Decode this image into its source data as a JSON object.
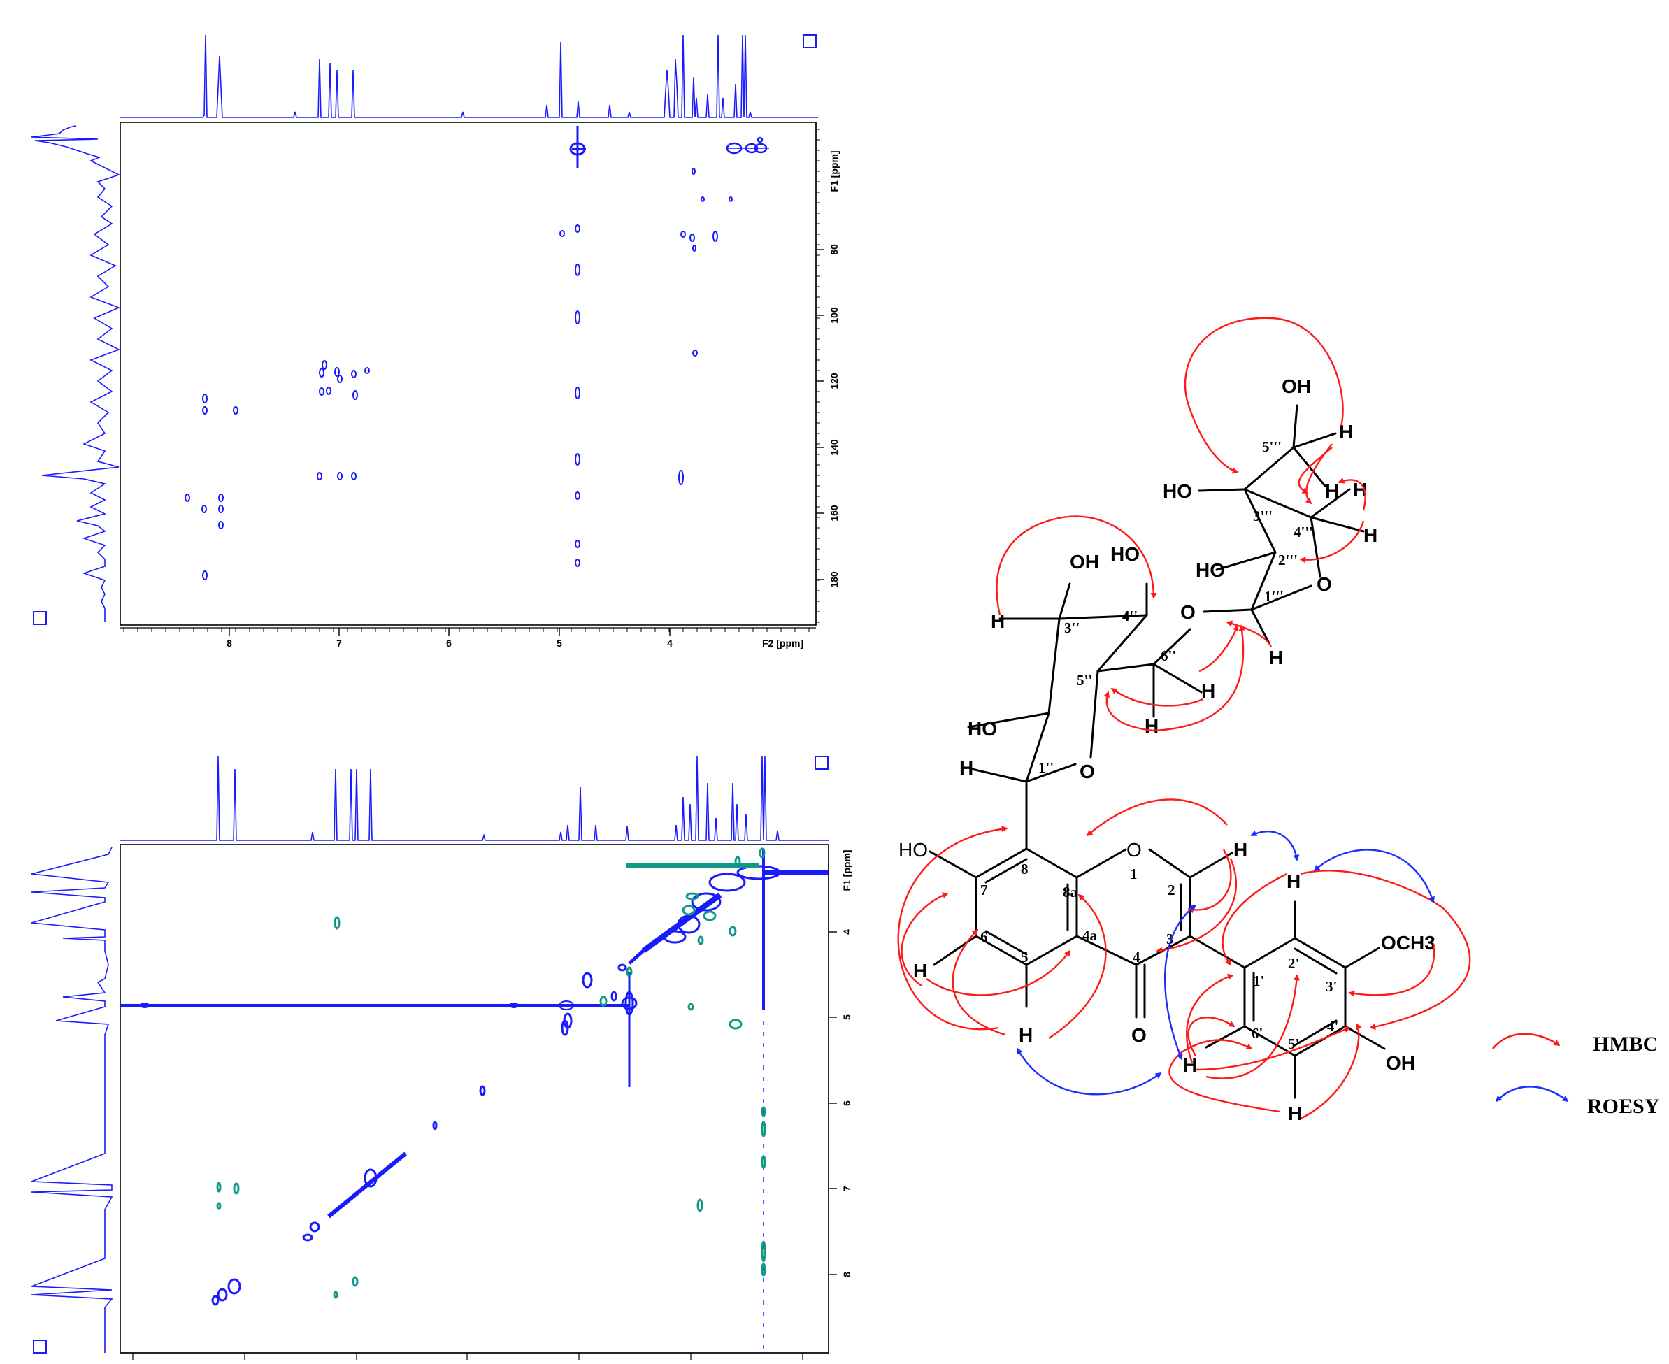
{
  "top_spectrum": {
    "f1_label": "F1 [ppm]",
    "f2_label": "F2 [ppm]",
    "f1_ticks": [
      "80",
      "100",
      "120",
      "140",
      "160",
      "180"
    ],
    "f2_ticks": [
      "8",
      "7",
      "6",
      "5",
      "4"
    ]
  },
  "bottom_spectrum": {
    "f1_label": "F1 [ppm]",
    "f1_ticks": [
      "4",
      "5",
      "6",
      "7",
      "8"
    ]
  },
  "structure": {
    "atoms": {
      "ho7": "HO",
      "o1": "O",
      "h2": "H",
      "h2p": "H",
      "och3": "OCH3",
      "o4": "O",
      "oh4p": "OH",
      "h6": "H",
      "h5": "H",
      "h6p": "H",
      "h5p": "H",
      "h1pp": "H",
      "o_ring1": "O",
      "ho2pp": "HO",
      "h3pp": "H",
      "oh3pp": "OH",
      "ho4pp": "HO",
      "h5pp": "H",
      "h6pp": "H",
      "o_link": "O",
      "h1ppp": "H",
      "ho2ppp": "HO",
      "ho3ppp": "HO",
      "o_ring2": "O",
      "h4ppp_a": "H",
      "h4ppp_b": "H",
      "h4ppp_c": "H",
      "oh5ppp": "OH",
      "h5ppp": "H"
    },
    "numbers": {
      "n1": "1",
      "n2": "2",
      "n3": "3",
      "n4": "4",
      "n4a": "4a",
      "n5": "5",
      "n6": "6",
      "n7": "7",
      "n8": "8",
      "n8a": "8a",
      "n1p": "1'",
      "n2p": "2'",
      "n3p": "3'",
      "n4p": "4'",
      "n5p": "5'",
      "n6p": "6'",
      "n1pp": "1''",
      "n3pp": "3''",
      "n4pp": "4''",
      "n5pp": "5''",
      "n6pp": "6''",
      "n1ppp": "1'''",
      "n2ppp": "2'''",
      "n3ppp": "3'''",
      "n4ppp": "4'''",
      "n5ppp": "5'''"
    }
  },
  "legend": {
    "hmbc": "HMBC",
    "roesy": "ROESY"
  },
  "colors": {
    "spectrum": "#1a1aff",
    "contour_pos": "#1a1aff",
    "contour_neg": "#119988",
    "hmbc_arrow": "#ff1a1a",
    "roesy_arrow": "#1a2fff"
  }
}
